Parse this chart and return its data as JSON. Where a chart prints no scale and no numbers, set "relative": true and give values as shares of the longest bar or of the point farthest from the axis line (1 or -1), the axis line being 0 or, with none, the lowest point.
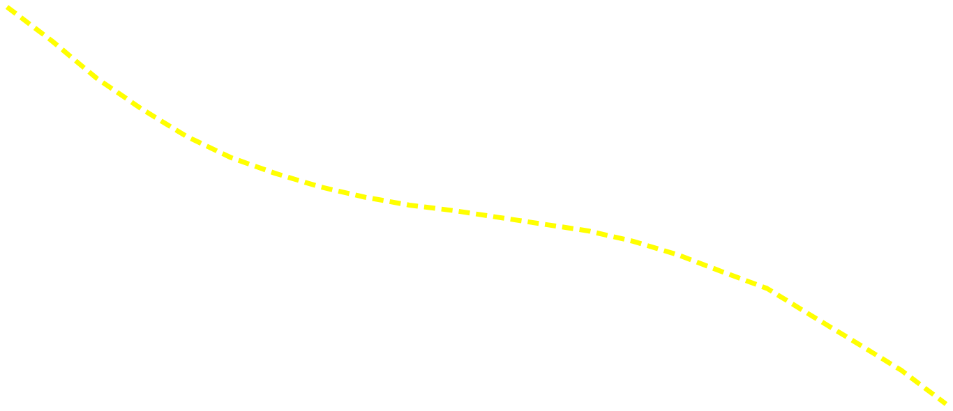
{
  "chart_data": {
    "type": "line",
    "relative": true,
    "line_style": "dashed",
    "categories": [
      null,
      null,
      null,
      null,
      null,
      null,
      null,
      null,
      null,
      null,
      null,
      null,
      null,
      null,
      null,
      null,
      null,
      null,
      null,
      null,
      null,
      null
    ],
    "series": [
      {
        "color": "#ffff00",
        "values": [
          1,
          0.915,
          0.821,
          0.744,
          0.675,
          0.621,
          0.581,
          0.547,
          0.521,
          0.501,
          0.487,
          0.47,
          0.453,
          0.436,
          0.41,
          0.376,
          0.333,
          0.291,
          0.222,
          0.154,
          0.085,
          0
        ]
      }
    ]
  }
}
